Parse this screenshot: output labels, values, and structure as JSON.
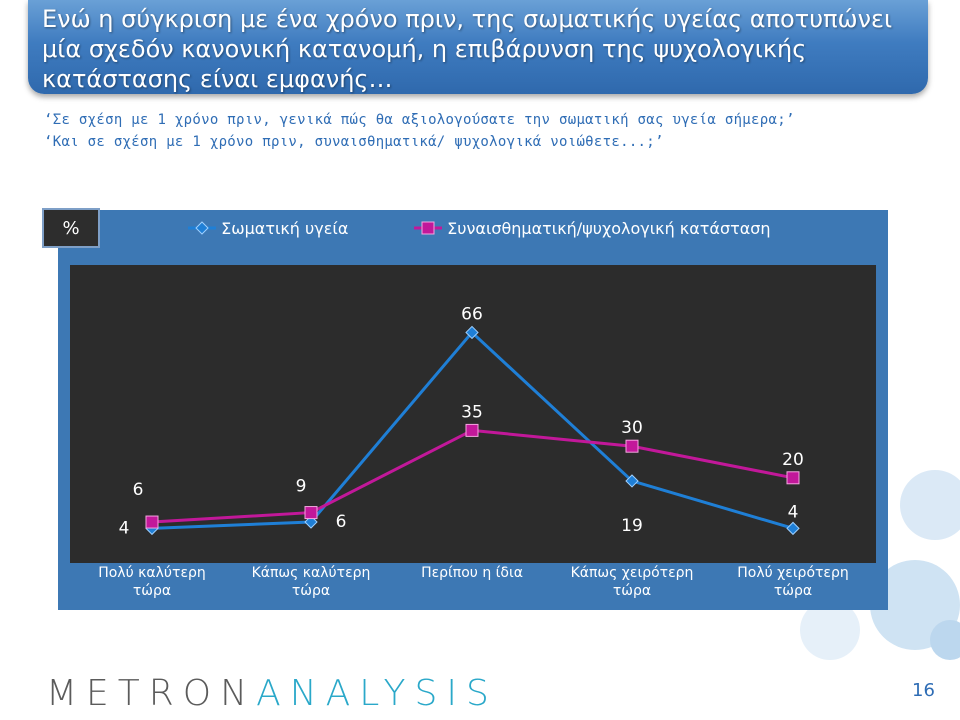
{
  "header": {
    "title": "Ενώ η σύγκριση με ένα χρόνο πριν, της σωματικής υγείας αποτυπώνει μία σχεδόν κανονική κατανομή, η επιβάρυνση της ψυχολογικής κατάστασης είναι εμφανής…"
  },
  "questions": {
    "q1": "‘Σε σχέση με 1 χρόνο πριν, γενικά πώς θα αξιολογούσατε την σωματική σας υγεία σήμερα;’",
    "q2": "‘Και σε σχέση με 1 χρόνο πριν, συναισθηματικά/ ψυχολογικά νοιώθετε...;’"
  },
  "unit_label": "%",
  "chart_data": {
    "type": "line",
    "categories": [
      [
        "Πολύ καλύτερη",
        "τώρα"
      ],
      [
        "Κάπως καλύτερη",
        "τώρα"
      ],
      [
        "Περίπου η ίδια"
      ],
      [
        "Κάπως χειρότερη",
        "τώρα"
      ],
      [
        "Πολύ χειρότερη",
        "τώρα"
      ]
    ],
    "series": [
      {
        "name": "Σωματική υγεία",
        "values": [
          4,
          6,
          66,
          19,
          4
        ],
        "color": "#1f7fd6",
        "marker": "diamond"
      },
      {
        "name": "Συναισθηματική/ψυχολογική  κατάσταση",
        "values": [
          6,
          9,
          35,
          30,
          20
        ],
        "color": "#c2189a",
        "marker": "square"
      }
    ],
    "ylim": [
      0,
      80
    ],
    "grid": false,
    "legend": "top"
  },
  "footer": {
    "logo_left": "METRON",
    "logo_right": "ANALYSIS",
    "page_number": "16"
  },
  "colors": {
    "title_bg": "#3f7cc0",
    "chart_frame": "#3d78b4",
    "plot_bg": "#2c2c2c",
    "question_text": "#2f6db5",
    "logo_gray": "#5b5b5b",
    "logo_teal": "#2aa8c9"
  }
}
